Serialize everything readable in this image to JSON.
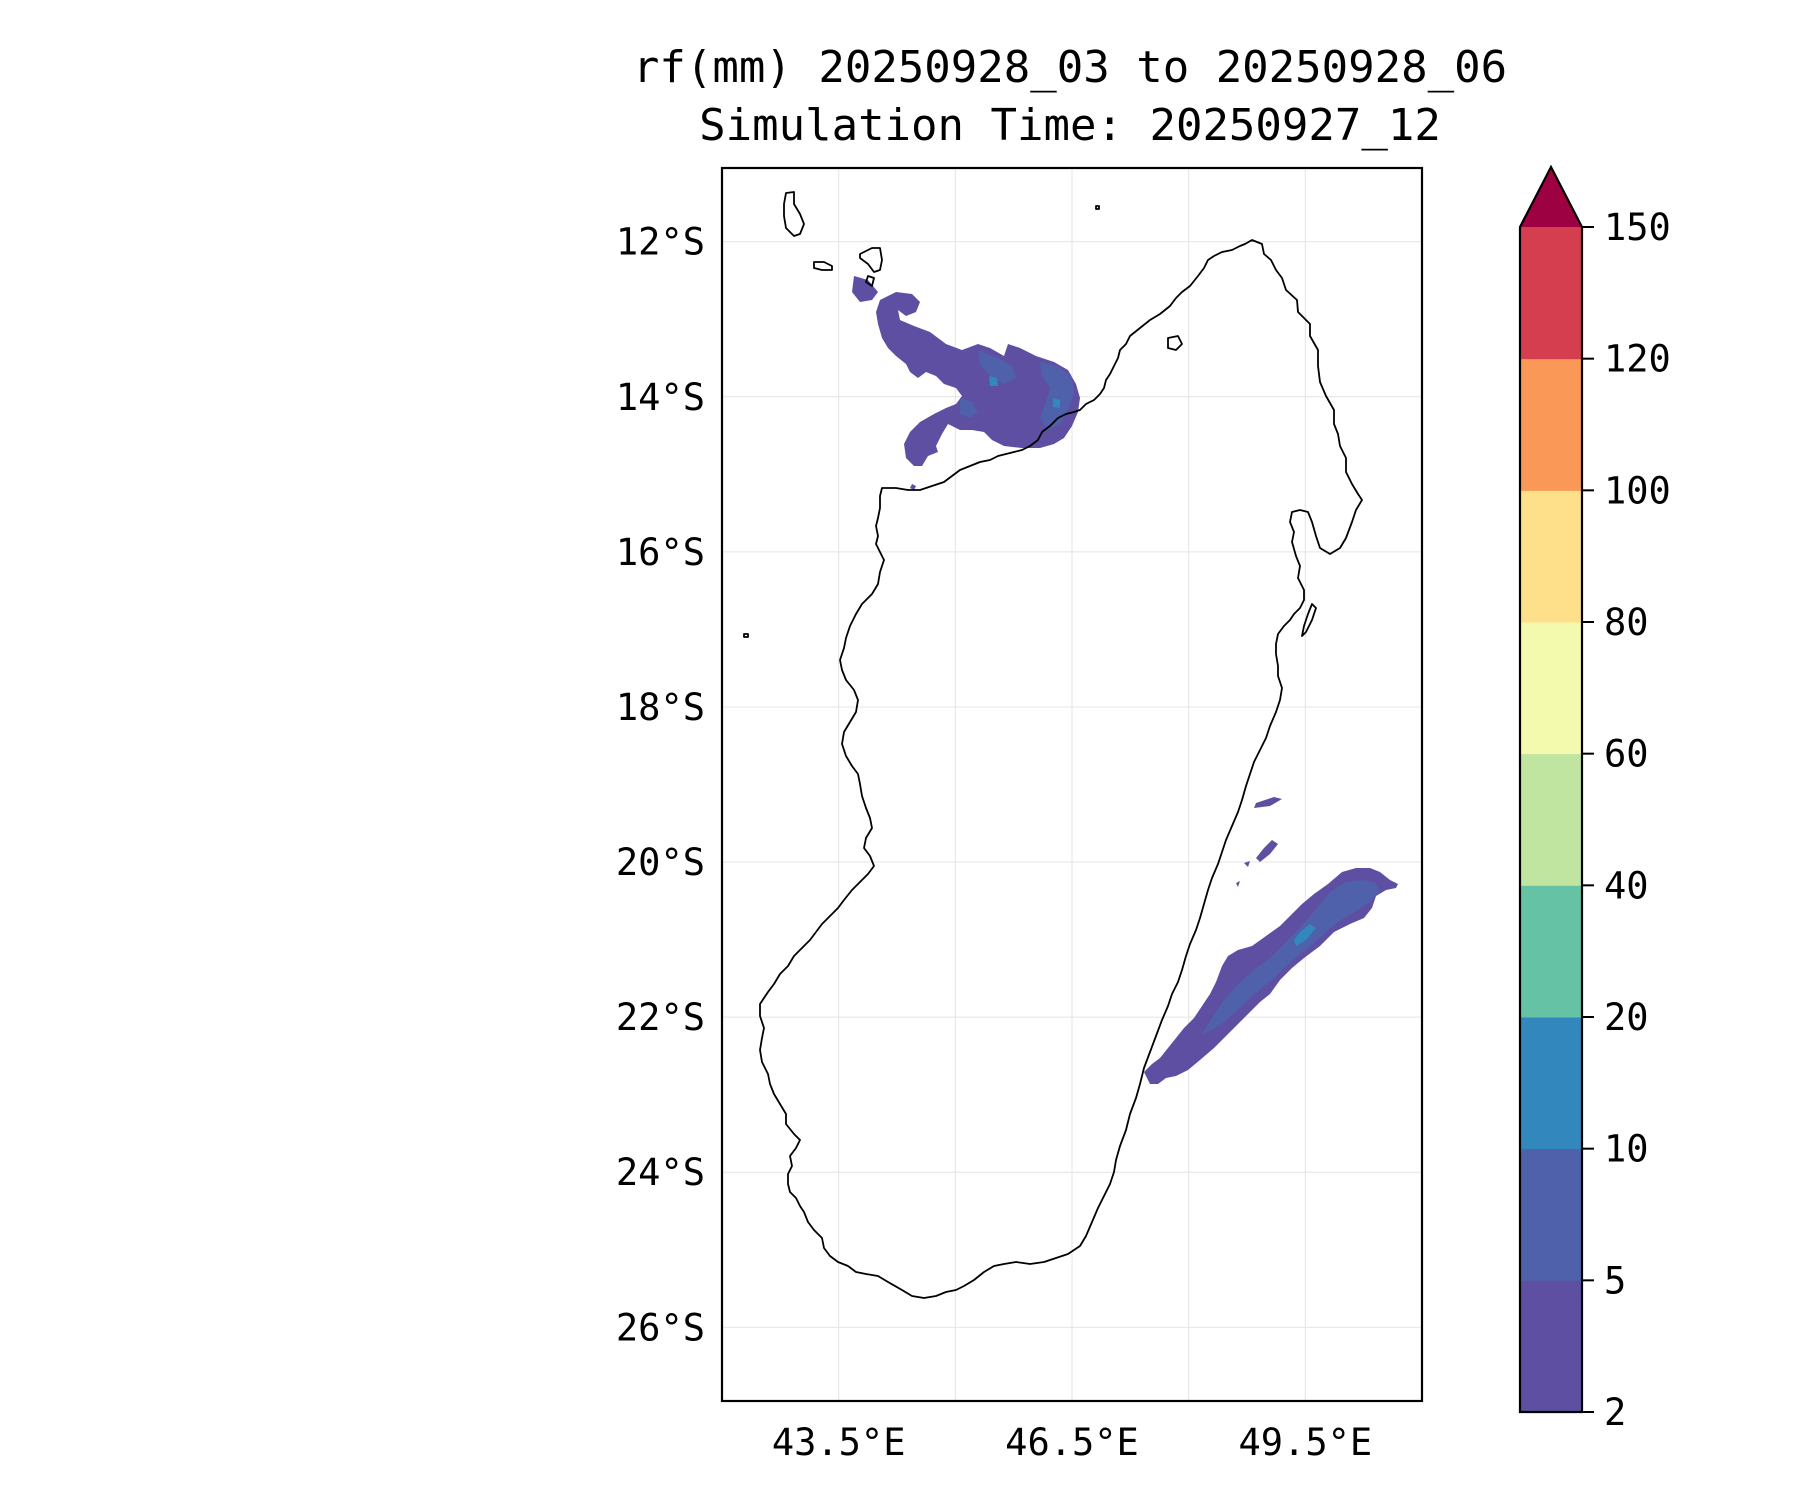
{
  "title": {
    "line1": "rf(mm) 20250928_03 to 20250928_06",
    "line2": "Simulation Time: 20250927_12"
  },
  "map": {
    "lon_range": [
      42.0,
      51.0
    ],
    "lat_range": [
      -26.95,
      -11.05
    ],
    "gridlines": true,
    "lat_ticks": [
      {
        "value": -12,
        "label": "12°S"
      },
      {
        "value": -14,
        "label": "14°S"
      },
      {
        "value": -16,
        "label": "16°S"
      },
      {
        "value": -18,
        "label": "18°S"
      },
      {
        "value": -20,
        "label": "20°S"
      },
      {
        "value": -22,
        "label": "22°S"
      },
      {
        "value": -24,
        "label": "24°S"
      },
      {
        "value": -26,
        "label": "26°S"
      }
    ],
    "lon_ticks": [
      {
        "value": 43.5,
        "label": "43.5°E"
      },
      {
        "value": 46.5,
        "label": "46.5°E"
      },
      {
        "value": 49.5,
        "label": "49.5°E"
      }
    ],
    "lon_gridlines": [
      43.5,
      45.0,
      46.5,
      48.0,
      49.5,
      51.0
    ],
    "coastline_color": "#000000"
  },
  "colorbar": {
    "extend": "max",
    "levels": [
      2,
      5,
      10,
      20,
      40,
      60,
      80,
      100,
      120,
      150
    ],
    "labels": [
      "2",
      "5",
      "10",
      "20",
      "40",
      "60",
      "80",
      "100",
      "120",
      "150"
    ],
    "colors": [
      "#5e4fa2",
      "#4f61aa",
      "#3288bd",
      "#66c2a5",
      "#bfe5a0",
      "#f4faad",
      "#fee08b",
      "#fa9857",
      "#d53e4f"
    ],
    "over_color": "#9e0142"
  }
}
